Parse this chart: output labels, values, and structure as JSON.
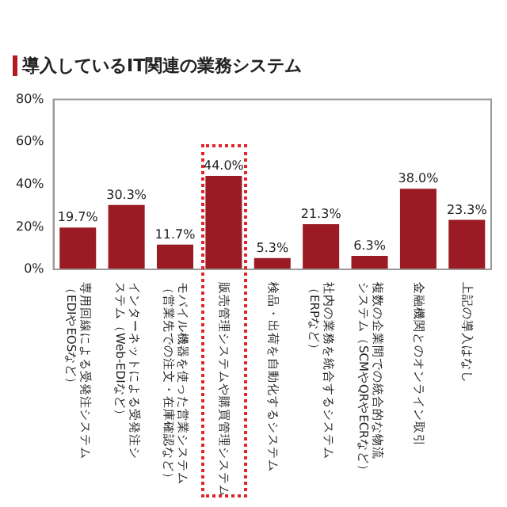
{
  "chart_data": {
    "type": "bar",
    "title": "導入しているIT関連の業務システム",
    "categories": [
      "専用回線による受発注システム（EDIやEOSなど）",
      "インターネットによる受発注システム（Web-EDIなど）",
      "モバイル機器を使った営業システム（営業先での注文・在庫確認など）",
      "販売管理システムや購買管理システム",
      "検品・出荷を自動化するシステム",
      "社内の業務を統合するシステム（ERPなど）",
      "複数の企業間での統合的な物流システム（SCMやQRやECRなど）",
      "金融機関とのオンライン取引",
      "上記の導入はなし"
    ],
    "values": [
      19.7,
      30.3,
      11.7,
      44.0,
      5.3,
      21.3,
      6.3,
      38.0,
      23.3
    ],
    "value_labels": [
      "19.7%",
      "30.3%",
      "11.7%",
      "44.0%",
      "5.3%",
      "21.3%",
      "6.3%",
      "38.0%",
      "23.3%"
    ],
    "color": "#9b1b24",
    "ylim": [
      0,
      80
    ],
    "yticks": [
      {
        "value": 0,
        "label": "0%"
      },
      {
        "value": 20,
        "label": "20%"
      },
      {
        "value": 40,
        "label": "40%"
      },
      {
        "value": 60,
        "label": "60%"
      },
      {
        "value": 80,
        "label": "80%"
      }
    ],
    "grid": false,
    "legend": false
  }
}
